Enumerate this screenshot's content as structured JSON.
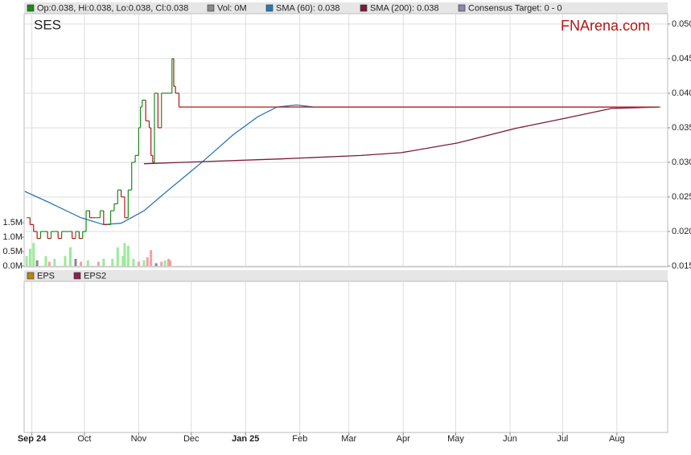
{
  "chart_data": {
    "type": "stock",
    "title": "SES",
    "watermark": "FNArena.com",
    "legend": [
      {
        "label": "Op:0.038, Hi:0.038, Lo:0.038, Cl:0.038",
        "color": "#1a8a1a"
      },
      {
        "label": "Vol: 0M",
        "color": "#8a8a8a"
      },
      {
        "label": "SMA (60): 0.038",
        "color": "#2a78b4"
      },
      {
        "label": "SMA (200): 0.038",
        "color": "#7a1a3a"
      },
      {
        "label": "Consensus Target: 0 - 0",
        "color": "#8888aa"
      }
    ],
    "xlim": [
      -4.4,
      363
    ],
    "xticks": [
      {
        "value": 0,
        "label": "Sep 24"
      },
      {
        "value": 30,
        "label": "Oct"
      },
      {
        "value": 61,
        "label": "Nov"
      },
      {
        "value": 91,
        "label": "Dec"
      },
      {
        "value": 122,
        "label": "Jan 25"
      },
      {
        "value": 153,
        "label": "Feb"
      },
      {
        "value": 181,
        "label": "Mar"
      },
      {
        "value": 212,
        "label": "Apr"
      },
      {
        "value": 242,
        "label": "May"
      },
      {
        "value": 273,
        "label": "Jun"
      },
      {
        "value": 303,
        "label": "Jul"
      },
      {
        "value": 334,
        "label": "Aug"
      }
    ],
    "ylim": [
      0.015,
      0.0515
    ],
    "yticks": [
      {
        "value": 0.015,
        "label": "0.015"
      },
      {
        "value": 0.02,
        "label": "0.020"
      },
      {
        "value": 0.025,
        "label": "0.025"
      },
      {
        "value": 0.03,
        "label": "0.030"
      },
      {
        "value": 0.035,
        "label": "0.035"
      },
      {
        "value": 0.04,
        "label": "0.040"
      },
      {
        "value": 0.045,
        "label": "0.045"
      },
      {
        "value": 0.05,
        "label": "0.050"
      }
    ],
    "y2lim": [
      0,
      8.72
    ],
    "y2ticks": [
      {
        "value": 0,
        "label": "0.0M"
      },
      {
        "value": 0.5,
        "label": "0.5M"
      },
      {
        "value": 1,
        "label": "1.0M"
      },
      {
        "value": 1.5,
        "label": "1.5M"
      }
    ],
    "grid": true,
    "series": [
      {
        "color": "#1a8a1a",
        "down_color": "#b01818",
        "style": "step",
        "x": [
          -3,
          -1,
          1,
          3,
          5,
          7,
          9,
          11,
          13,
          15,
          17,
          19,
          21,
          23,
          25,
          27,
          29,
          31,
          33,
          35,
          37,
          39,
          41,
          43,
          45,
          47,
          49,
          51,
          53,
          55,
          57,
          59,
          61,
          62,
          63,
          65,
          67,
          68,
          69,
          70,
          72,
          74,
          76,
          78,
          80,
          81,
          82,
          84,
          358
        ],
        "values": [
          0.022,
          0.021,
          0.02,
          0.019,
          0.02,
          0.02,
          0.019,
          0.02,
          0.02,
          0.019,
          0.02,
          0.02,
          0.02,
          0.019,
          0.02,
          0.019,
          0.02,
          0.023,
          0.022,
          0.022,
          0.022,
          0.023,
          0.021,
          0.021,
          0.023,
          0.024,
          0.026,
          0.025,
          0.022,
          0.026,
          0.03,
          0.031,
          0.035,
          0.038,
          0.039,
          0.036,
          0.035,
          0.031,
          0.03,
          0.04,
          0.035,
          0.04,
          0.04,
          0.04,
          0.045,
          0.041,
          0.04,
          0.038,
          0.038
        ]
      },
      {
        "color": "#2a78b4",
        "style": "line",
        "x": [
          -4,
          9,
          28,
          41,
          51,
          64,
          78,
          97,
          115,
          129,
          140,
          151,
          161,
          358
        ],
        "values": [
          0.0258,
          0.0243,
          0.022,
          0.021,
          0.0212,
          0.023,
          0.026,
          0.03,
          0.034,
          0.0366,
          0.038,
          0.0383,
          0.038,
          0.038
        ]
      },
      {
        "color": "#7a1a3a",
        "style": "line",
        "x": [
          64,
          97,
          142,
          188,
          211,
          243,
          276,
          303,
          331,
          358
        ],
        "values": [
          0.0298,
          0.0301,
          0.0305,
          0.031,
          0.0314,
          0.0328,
          0.0349,
          0.0363,
          0.0378,
          0.038
        ]
      },
      {
        "style": "volume",
        "axis": "y2",
        "x": [
          -3,
          -1,
          1,
          3,
          8,
          10,
          13,
          19,
          22,
          25,
          28,
          32,
          38,
          41,
          46,
          49,
          52,
          53,
          55,
          58,
          61,
          64,
          66,
          68,
          71,
          74,
          76,
          78,
          79
        ],
        "values": [
          0.35,
          0.6,
          0.8,
          0.2,
          0.35,
          0.15,
          0.25,
          0.35,
          0.65,
          0.25,
          0.15,
          0.2,
          0.15,
          0.25,
          0.25,
          0.65,
          0.35,
          0.8,
          0.7,
          0.25,
          0.15,
          0.2,
          0.3,
          0.55,
          0.1,
          0.15,
          0.2,
          0.25,
          0.2
        ],
        "colors": [
          "#98ec98",
          "#98ec98",
          "#98ec98",
          "#8a8a8a",
          "#98ec98",
          "#f4a0a0",
          "#98ec98",
          "#98ec98",
          "#98ec98",
          "#8a8a8a",
          "#f4a0a0",
          "#98ec98",
          "#f4a0a0",
          "#98ec98",
          "#98ec98",
          "#98ec98",
          "#98ec98",
          "#98ec98",
          "#98ec98",
          "#98ec98",
          "#f4a0a0",
          "#98ec98",
          "#f4a0a0",
          "#f4a0a0",
          "#8a8a8a",
          "#f4a0a0",
          "#98ec98",
          "#f4a0a0",
          "#f4a0a0"
        ]
      }
    ],
    "lower_panel": {
      "legend": [
        {
          "label": "EPS",
          "color": "#b8860b"
        },
        {
          "label": "EPS2",
          "color": "#8b2252"
        }
      ]
    }
  }
}
